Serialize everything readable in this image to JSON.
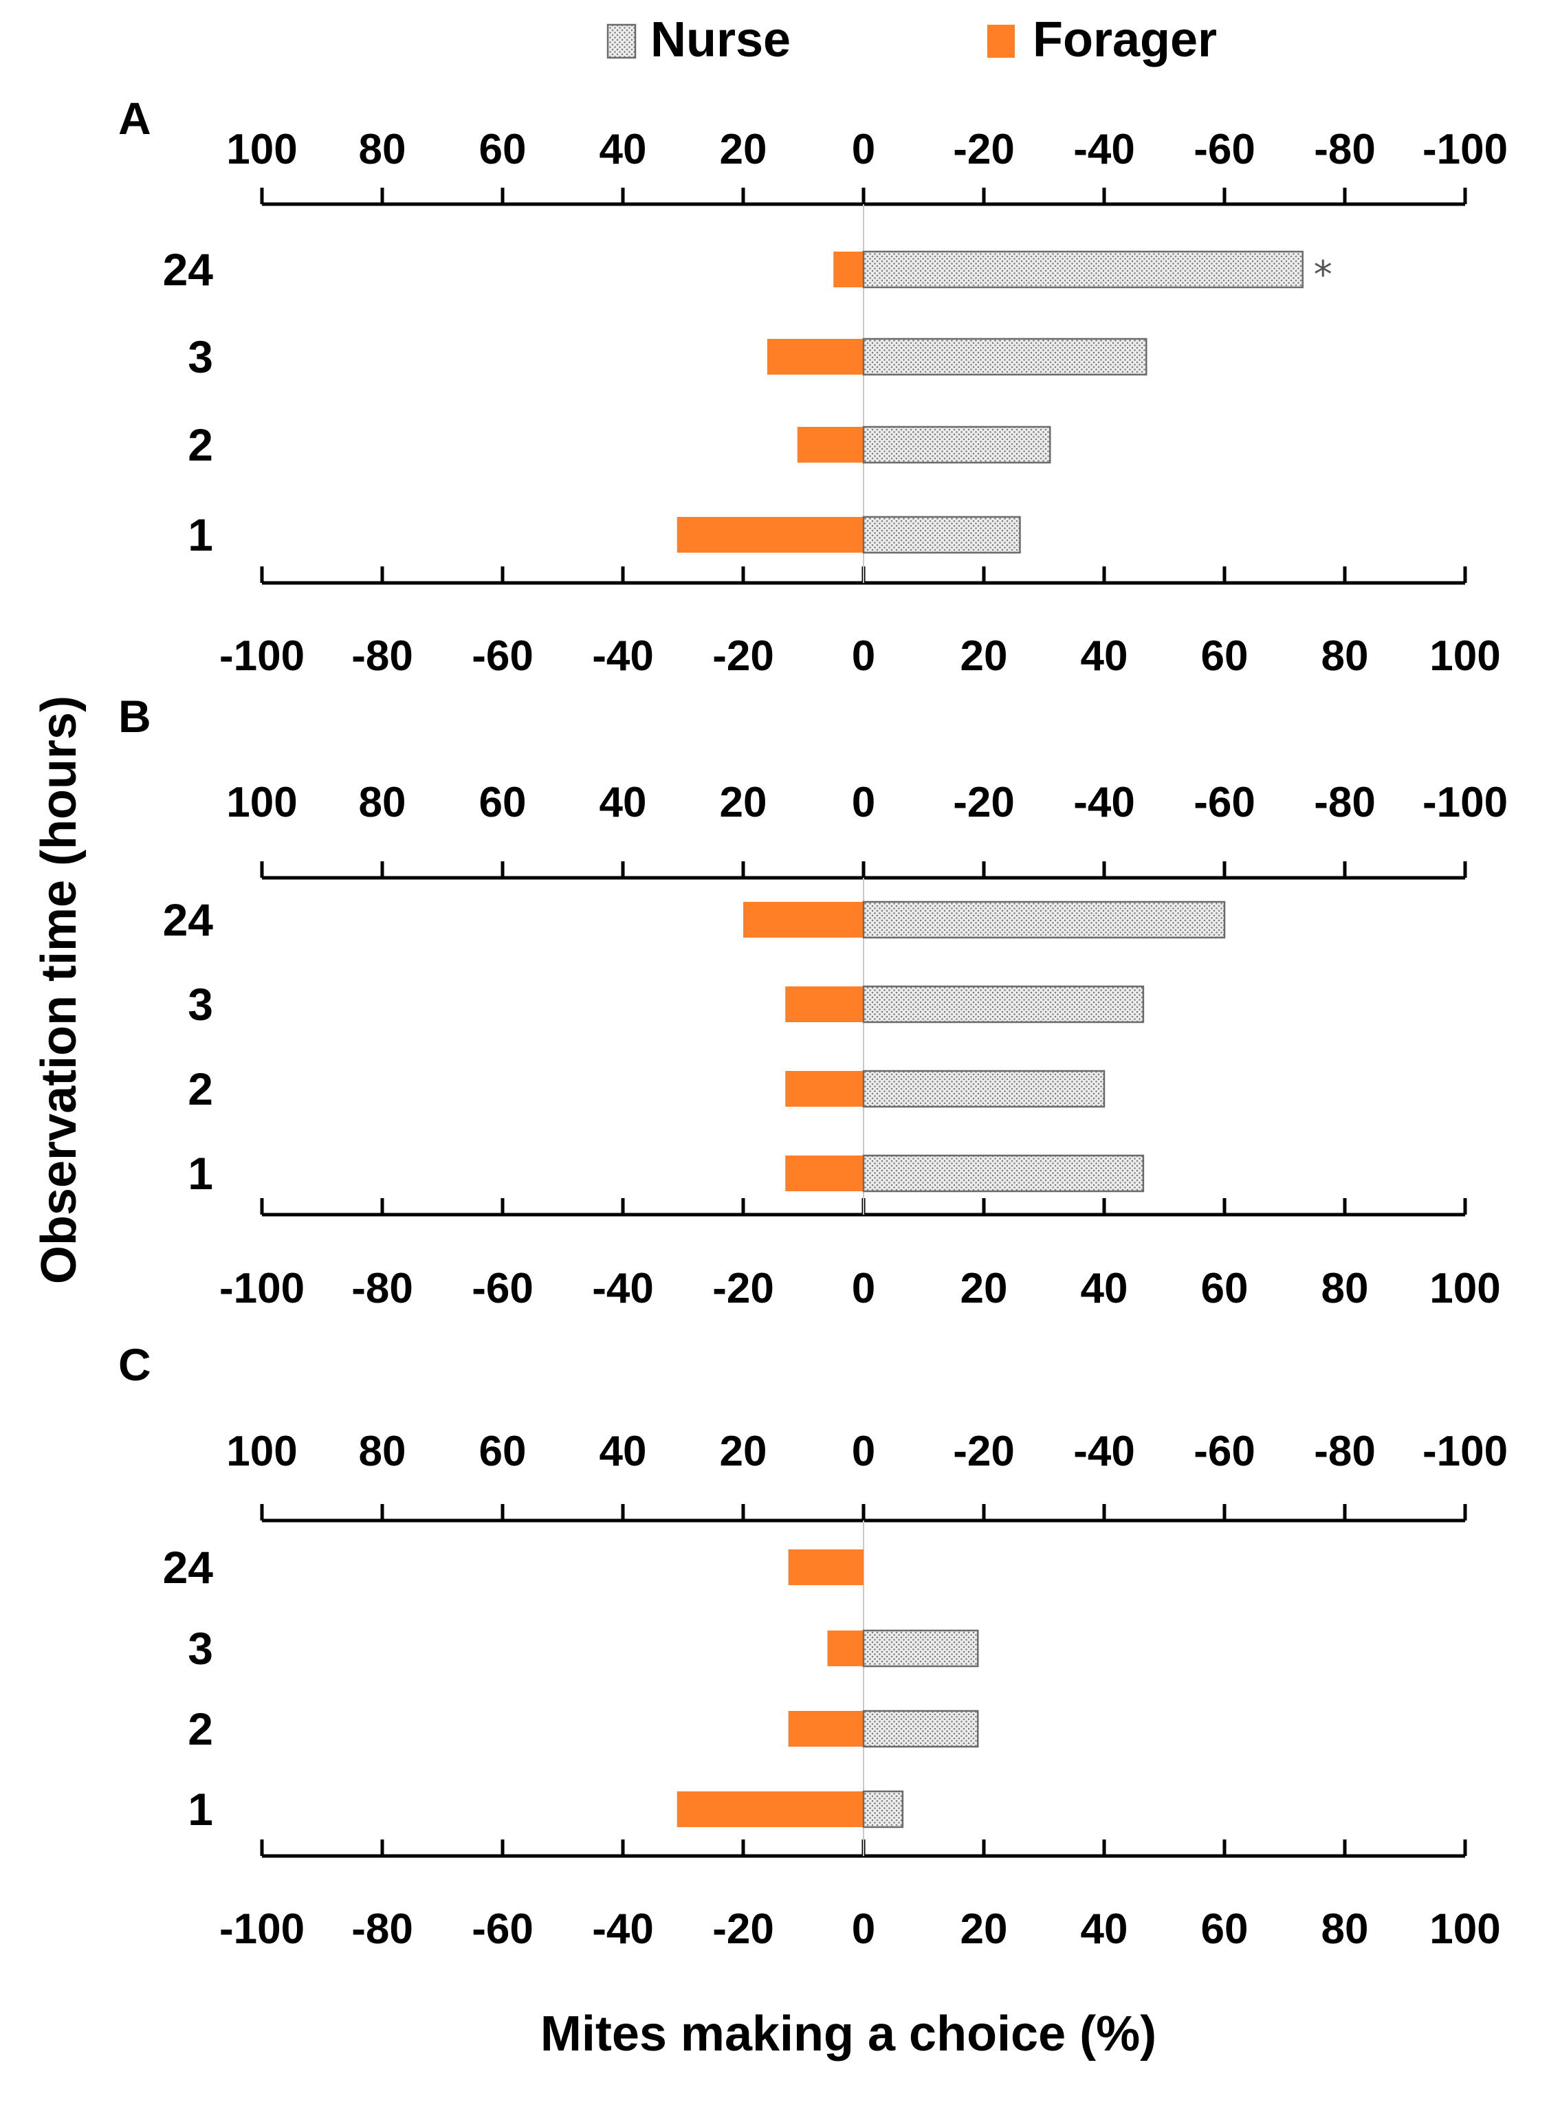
{
  "chart_data": {
    "type": "bar",
    "orientation": "horizontal-diverging",
    "legend": [
      {
        "name": "Nurse",
        "pattern": "dotted-gray"
      },
      {
        "name": "Forager",
        "color": "#ff7f27"
      }
    ],
    "ylabel": "Observation time (hours)",
    "xlabel": "Mites making a choice (%)",
    "xlim": [
      -100,
      100
    ],
    "top_ticks": [
      "100",
      "80",
      "60",
      "40",
      "20",
      "0",
      "-20",
      "-40",
      "-60",
      "-80",
      "-100"
    ],
    "bottom_ticks": [
      "-100",
      "-80",
      "-60",
      "-40",
      "-20",
      "0",
      "20",
      "40",
      "60",
      "80",
      "100"
    ],
    "categories": [
      "24",
      "3",
      "2",
      "1"
    ],
    "panels": [
      {
        "label": "A",
        "series": [
          {
            "name": "Nurse",
            "values": [
              73,
              47,
              31,
              26
            ]
          },
          {
            "name": "Forager",
            "values": [
              -5,
              -16,
              -11,
              -31
            ]
          }
        ],
        "annotations": [
          {
            "category": "24",
            "series": "Nurse",
            "text": "*"
          }
        ]
      },
      {
        "label": "B",
        "series": [
          {
            "name": "Nurse",
            "values": [
              60,
              46.5,
              40,
              46.5
            ]
          },
          {
            "name": "Forager",
            "values": [
              -20,
              -13,
              -13,
              -13
            ]
          }
        ],
        "annotations": []
      },
      {
        "label": "C",
        "series": [
          {
            "name": "Nurse",
            "values": [
              0,
              19,
              19,
              6.5
            ]
          },
          {
            "name": "Forager",
            "values": [
              -12.5,
              -6,
              -12.5,
              -31
            ]
          }
        ],
        "annotations": []
      }
    ]
  }
}
